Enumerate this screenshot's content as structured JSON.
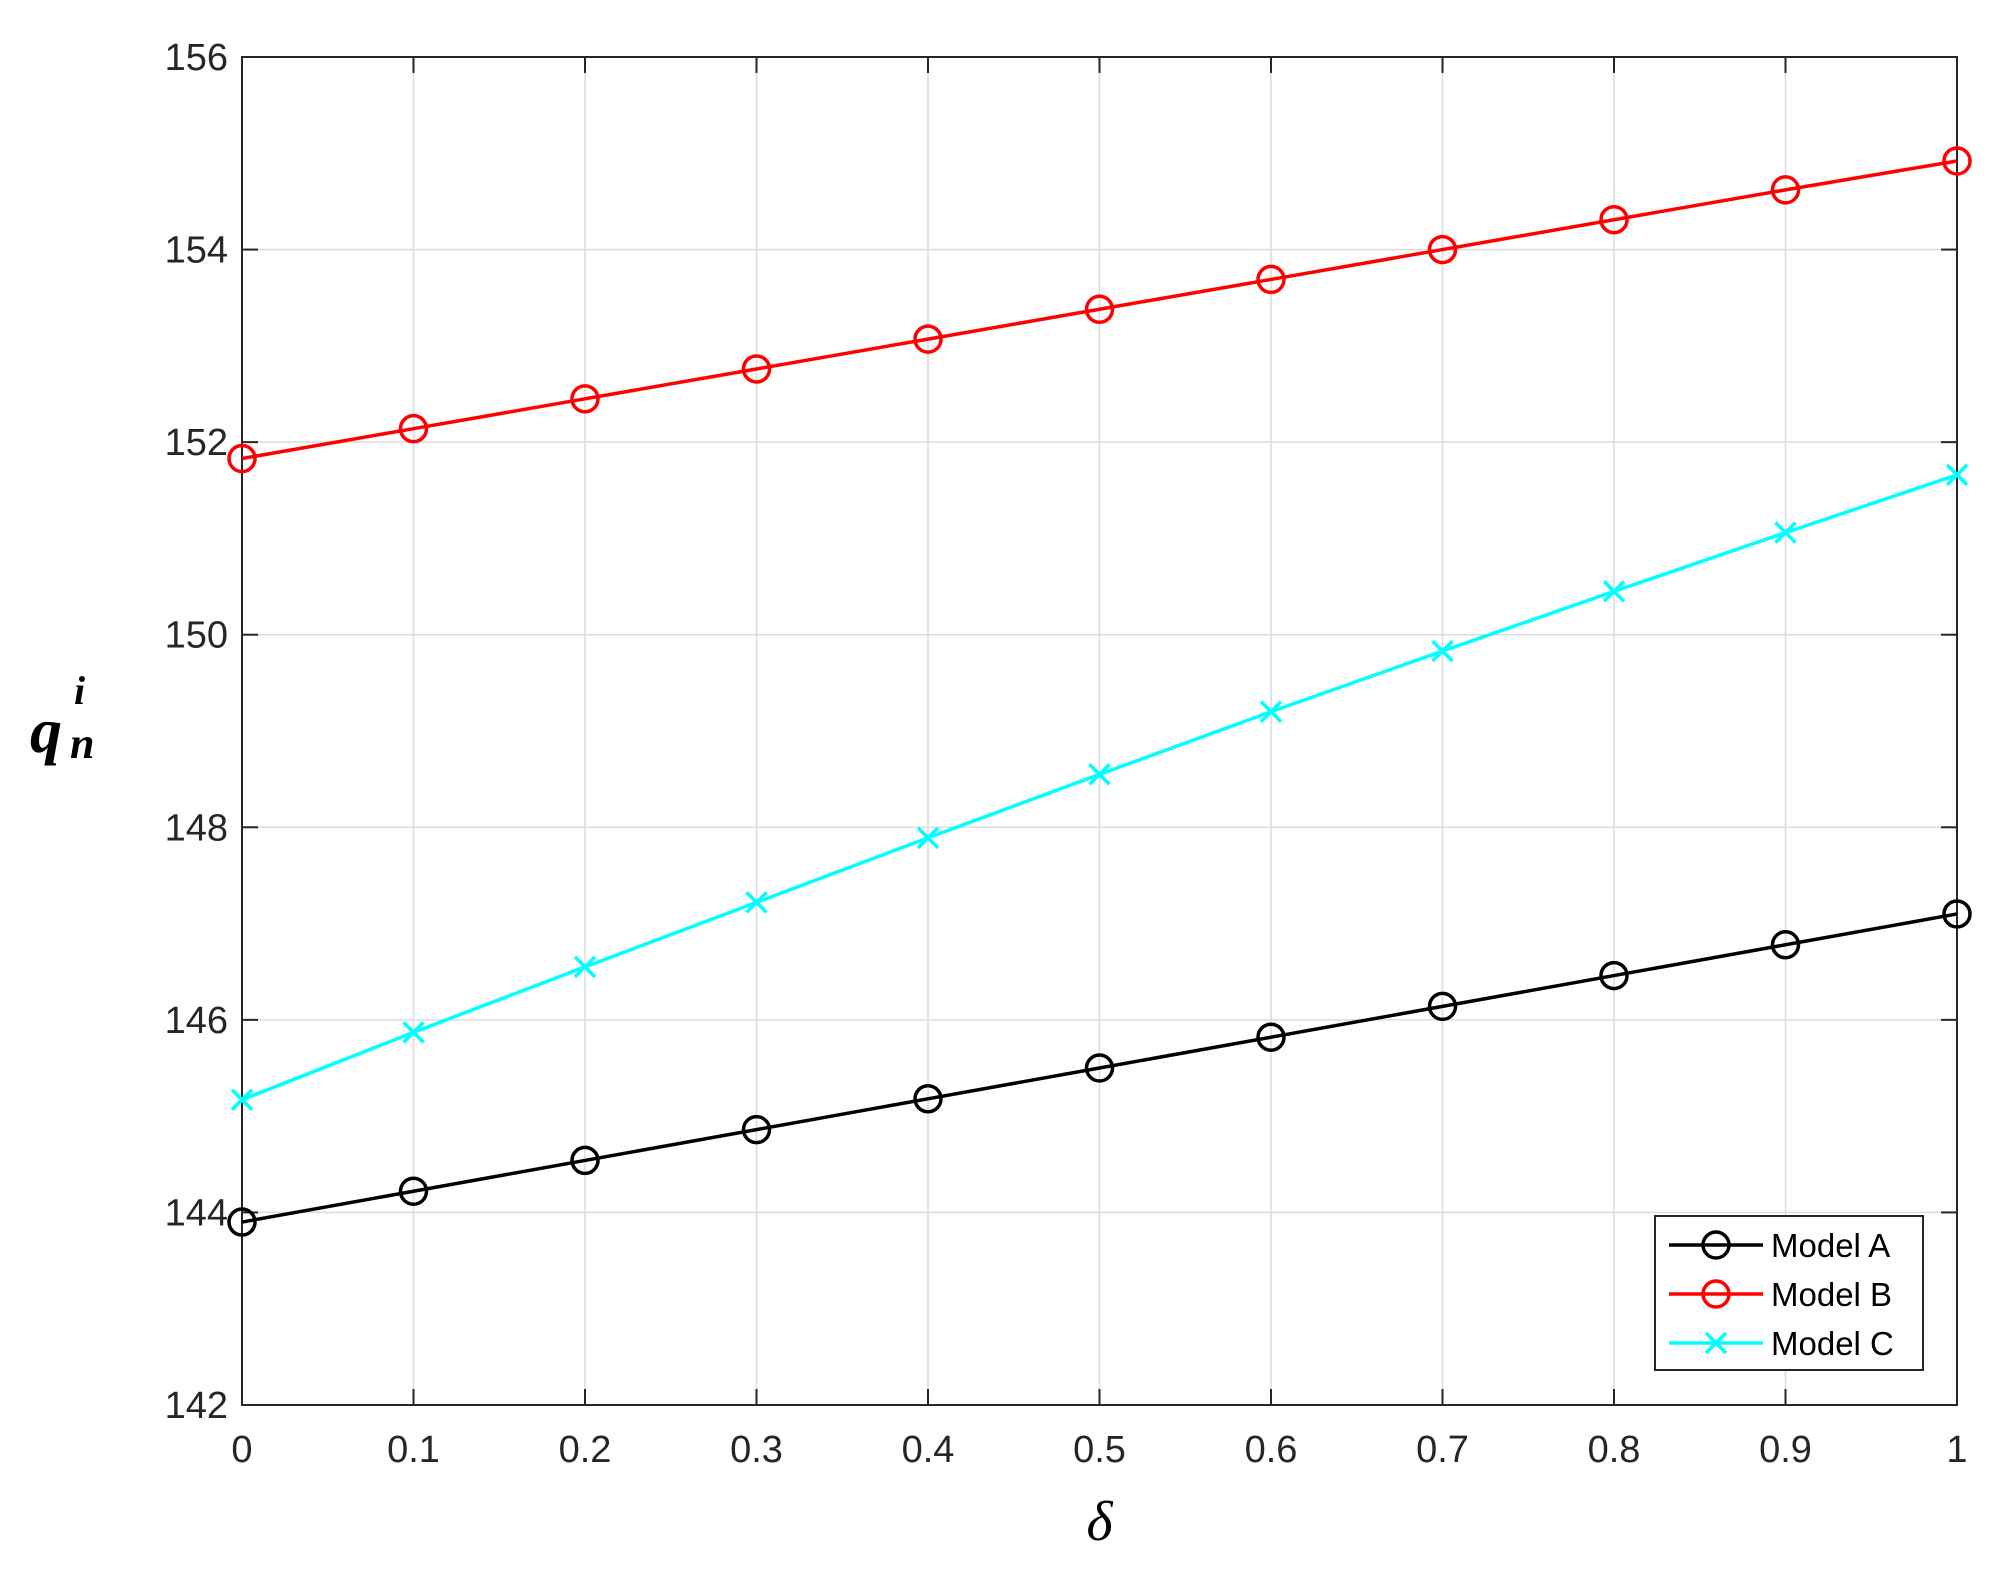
{
  "chart_data": {
    "type": "line",
    "title": "",
    "xlabel": "δ",
    "ylabel": {
      "base": "q",
      "sup": "i",
      "sub": "n"
    },
    "xlim": [
      0,
      1
    ],
    "ylim": [
      142,
      156
    ],
    "x": [
      0,
      0.1,
      0.2,
      0.3,
      0.4,
      0.5,
      0.6,
      0.7,
      0.8,
      0.9,
      1
    ],
    "xticks": [
      "0",
      "0.1",
      "0.2",
      "0.3",
      "0.4",
      "0.5",
      "0.6",
      "0.7",
      "0.8",
      "0.9",
      "1"
    ],
    "yticks": [
      "142",
      "144",
      "146",
      "148",
      "150",
      "152",
      "154",
      "156"
    ],
    "grid": true,
    "legend_position": "bottom-right",
    "series": [
      {
        "name": "Model A",
        "color": "#000000",
        "marker": "circle",
        "values": [
          143.9,
          144.22,
          144.54,
          144.86,
          145.18,
          145.5,
          145.82,
          146.14,
          146.46,
          146.78,
          147.1
        ]
      },
      {
        "name": "Model B",
        "color": "#ff0000",
        "marker": "circle",
        "values": [
          151.83,
          152.14,
          152.45,
          152.76,
          153.07,
          153.38,
          153.69,
          154.0,
          154.31,
          154.62,
          154.92
        ]
      },
      {
        "name": "Model C",
        "color": "#00ffff",
        "marker": "x",
        "values": [
          145.17,
          145.87,
          146.55,
          147.22,
          147.89,
          148.55,
          149.2,
          149.83,
          150.45,
          151.06,
          151.66
        ]
      }
    ]
  }
}
